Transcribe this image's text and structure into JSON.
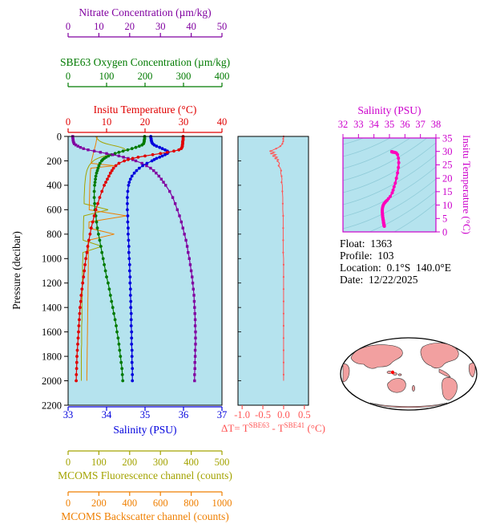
{
  "colors": {
    "plot_bg": "#b5e3ee",
    "frame": "#000000",
    "ts_axis": "#cc00cc",
    "ts_curve": "#ff00bb",
    "map_land": "#f2a0a0",
    "map_ocean": "#ffffff",
    "info_text": "#000000"
  },
  "info": {
    "lines": [
      "Float:  1363",
      "Profile:  103",
      "Location:  0.1°S  140.0°E",
      "Date:  12/22/2025"
    ]
  },
  "chart_data": [
    {
      "type": "line",
      "title": "Float profile plot",
      "ylabel": "Pressure (decibar)",
      "ylim": [
        0,
        2200
      ],
      "y_inverted": true,
      "yticks": [
        0,
        200,
        400,
        600,
        800,
        1000,
        1200,
        1400,
        1600,
        1800,
        2000,
        2200
      ],
      "grid": false,
      "pressure": [
        0,
        10,
        20,
        30,
        40,
        50,
        60,
        70,
        80,
        90,
        100,
        110,
        120,
        130,
        140,
        150,
        160,
        170,
        180,
        190,
        200,
        220,
        240,
        260,
        280,
        300,
        325,
        350,
        375,
        400,
        450,
        500,
        550,
        600,
        650,
        700,
        750,
        800,
        850,
        900,
        950,
        1000,
        1050,
        1100,
        1150,
        1200,
        1250,
        1300,
        1350,
        1400,
        1450,
        1500,
        1550,
        1600,
        1650,
        1700,
        1750,
        1800,
        1850,
        1900,
        1950,
        2000
      ],
      "series": [
        {
          "id": "nitrate",
          "name": "Nitrate Concentration",
          "axis_title": "Nitrate Concentration (µm/kg)",
          "units": "µm/kg",
          "color": "#8000a0",
          "marker": "square",
          "xlim": [
            0,
            50
          ],
          "xticks": [
            0,
            10,
            20,
            30,
            40,
            50
          ],
          "values": [
            1.5,
            1.5,
            1.6,
            1.6,
            1.7,
            1.8,
            2.0,
            2.5,
            3.2,
            4.0,
            5.0,
            6.5,
            8.5,
            10.5,
            12.5,
            14.5,
            16.5,
            18.0,
            19.5,
            21.0,
            22.0,
            24.0,
            25.5,
            26.8,
            27.8,
            28.6,
            29.5,
            30.3,
            31.0,
            31.7,
            33.0,
            34.0,
            34.8,
            35.5,
            36.2,
            36.8,
            37.3,
            37.8,
            38.3,
            38.7,
            39.0,
            39.4,
            39.7,
            40.0,
            40.3,
            40.5,
            40.7,
            40.9,
            41.0,
            41.1,
            41.2,
            41.3,
            41.3,
            41.4,
            41.4,
            41.4,
            41.3,
            41.3,
            41.2,
            41.2,
            41.1,
            41.1
          ]
        },
        {
          "id": "oxygen",
          "name": "SBE63 Oxygen Concentration",
          "axis_title": "SBE63 Oxygen Concentration (µm/kg)",
          "units": "µm/kg",
          "color": "#007a00",
          "marker": "circle",
          "xlim": [
            0,
            400
          ],
          "xticks": [
            0,
            100,
            200,
            300,
            400
          ],
          "values": [
            199,
            199,
            199,
            198,
            198,
            197,
            196,
            192,
            185,
            176,
            166,
            155,
            143,
            132,
            122,
            113,
            105,
            99,
            94,
            90,
            87,
            83,
            80,
            78,
            76,
            74,
            72,
            71,
            70,
            69,
            68,
            68,
            69,
            70,
            72,
            74,
            76,
            79,
            82,
            85,
            88,
            91,
            94,
            97,
            100,
            104,
            107,
            110,
            113,
            116,
            119,
            122,
            125,
            127,
            130,
            132,
            134,
            136,
            138,
            140,
            141,
            142
          ]
        },
        {
          "id": "temperature",
          "name": "Insitu Temperature",
          "axis_title": "Insitu Temperature (°C)",
          "units": "°C",
          "color": "#e00000",
          "marker": "circle",
          "xlim": [
            0,
            40
          ],
          "xticks": [
            0,
            10,
            20,
            30,
            40
          ],
          "values": [
            29.9,
            29.9,
            29.9,
            29.9,
            29.8,
            29.8,
            29.8,
            29.7,
            29.7,
            29.6,
            29.4,
            28.8,
            27.5,
            25.8,
            24.0,
            22.0,
            20.0,
            18.2,
            16.8,
            15.6,
            14.6,
            13.2,
            12.4,
            11.8,
            11.4,
            11.0,
            10.6,
            10.2,
            9.8,
            9.4,
            8.8,
            8.2,
            7.7,
            7.2,
            6.8,
            6.4,
            6.0,
            5.7,
            5.4,
            5.1,
            4.9,
            4.6,
            4.4,
            4.2,
            4.0,
            3.8,
            3.6,
            3.4,
            3.3,
            3.1,
            3.0,
            2.9,
            2.8,
            2.7,
            2.6,
            2.5,
            2.4,
            2.3,
            2.25,
            2.2,
            2.15,
            2.1
          ]
        },
        {
          "id": "salinity",
          "name": "Salinity",
          "axis_title": "Salinity (PSU)",
          "units": "PSU",
          "color": "#0000dd",
          "marker": "circle",
          "xlim": [
            33,
            37
          ],
          "xticks": [
            33,
            34,
            35,
            36,
            37
          ],
          "values": [
            35.15,
            35.15,
            35.16,
            35.16,
            35.17,
            35.18,
            35.2,
            35.24,
            35.3,
            35.38,
            35.45,
            35.52,
            35.58,
            35.6,
            35.58,
            35.52,
            35.45,
            35.38,
            35.3,
            35.24,
            35.18,
            35.05,
            34.94,
            34.85,
            34.78,
            34.72,
            34.66,
            34.62,
            34.59,
            34.57,
            34.55,
            34.54,
            34.54,
            34.54,
            34.55,
            34.55,
            34.56,
            34.56,
            34.57,
            34.58,
            34.58,
            34.59,
            34.6,
            34.6,
            34.61,
            34.61,
            34.62,
            34.62,
            34.63,
            34.63,
            34.64,
            34.64,
            34.64,
            34.65,
            34.65,
            34.65,
            34.66,
            34.66,
            34.66,
            34.67,
            34.67,
            34.67
          ]
        },
        {
          "id": "fluorescence",
          "name": "MCOMS Fluorescence channel",
          "axis_title": "MCOMS Fluorescence channel (counts)",
          "units": "counts",
          "color": "#a3a300",
          "marker": "none",
          "xlim": [
            0,
            500
          ],
          "xticks": [
            0,
            100,
            200,
            300,
            400,
            500
          ],
          "values": [
            90,
            92,
            95,
            99,
            104,
            112,
            124,
            140,
            158,
            172,
            182,
            186,
            180,
            168,
            152,
            136,
            120,
            106,
            96,
            88,
            82,
            74,
            68,
            64,
            61,
            59,
            57,
            56,
            55,
            54,
            53,
            52,
            52,
            130,
            51,
            50,
            50,
            49,
            49,
            110,
            48,
            48,
            47,
            47,
            47,
            46,
            46,
            46,
            45,
            45,
            45,
            45,
            44,
            44,
            44,
            44,
            43,
            43,
            43,
            43,
            43,
            43
          ]
        },
        {
          "id": "backscatter",
          "name": "MCOMS Backscatter channel",
          "axis_title": "MCOMS Backscatter channel (counts)",
          "units": "counts",
          "color": "#ef7f00",
          "marker": "none",
          "xlim": [
            0,
            1000
          ],
          "xticks": [
            0,
            200,
            400,
            600,
            800,
            1000
          ],
          "values": [
            190,
            188,
            186,
            185,
            183,
            182,
            180,
            178,
            176,
            174,
            172,
            170,
            168,
            166,
            164,
            162,
            160,
            158,
            156,
            154,
            152,
            150,
            300,
            148,
            146,
            145,
            144,
            143,
            142,
            141,
            140,
            139,
            138,
            137,
            380,
            136,
            135,
            300,
            134,
            133,
            132,
            132,
            131,
            131,
            130,
            130,
            129,
            129,
            128,
            128,
            127,
            127,
            126,
            126,
            125,
            125,
            124,
            124,
            123,
            123,
            122,
            122
          ]
        }
      ]
    },
    {
      "type": "line",
      "title": "SBE63 minus SBE41 temperature difference",
      "xlabel_parts": [
        "ΔT= T",
        "SBE63",
        " - T",
        "SBE41",
        " (°C)"
      ],
      "xlim": [
        -1.1,
        0.6
      ],
      "xticks": [
        -1.0,
        -0.5,
        0.0,
        0.5
      ],
      "xtick_labels": [
        "-1.0",
        "-0.5",
        "0.0",
        "0.5"
      ],
      "ylim": [
        0,
        2200
      ],
      "y_inverted": true,
      "color": "#ff5555",
      "uses_pressure_of_chart": 0,
      "values": [
        0.0,
        0.0,
        -0.01,
        0.0,
        -0.01,
        -0.02,
        -0.03,
        -0.05,
        -0.08,
        -0.12,
        -0.18,
        -0.25,
        -0.32,
        -0.22,
        -0.3,
        -0.18,
        -0.25,
        -0.15,
        -0.2,
        -0.12,
        -0.15,
        -0.1,
        -0.12,
        -0.08,
        -0.06,
        -0.07,
        -0.05,
        -0.04,
        -0.05,
        -0.03,
        -0.03,
        -0.02,
        -0.02,
        -0.02,
        -0.01,
        -0.01,
        -0.01,
        -0.01,
        -0.01,
        -0.01,
        -0.01,
        0.0,
        0.0,
        0.0,
        0.0,
        0.0,
        0.0,
        0.0,
        0.0,
        0.0,
        0.0,
        0.0,
        0.0,
        0.0,
        0.0,
        0.0,
        0.0,
        0.0,
        0.0,
        0.0,
        0.0,
        0.0
      ]
    },
    {
      "type": "line",
      "title": "T-S diagram",
      "xlabel": "Salinity (PSU)",
      "xlim": [
        32,
        38
      ],
      "xticks": [
        32,
        33,
        34,
        35,
        36,
        37,
        38
      ],
      "ylabel": "Insitu Temperature (°C)",
      "ylim": [
        0,
        35
      ],
      "yticks": [
        0,
        5,
        10,
        15,
        20,
        25,
        30,
        35
      ],
      "x_from": "salinity profile of chart 0",
      "y_from": "temperature profile of chart 0",
      "background_contours": "potential density"
    }
  ]
}
